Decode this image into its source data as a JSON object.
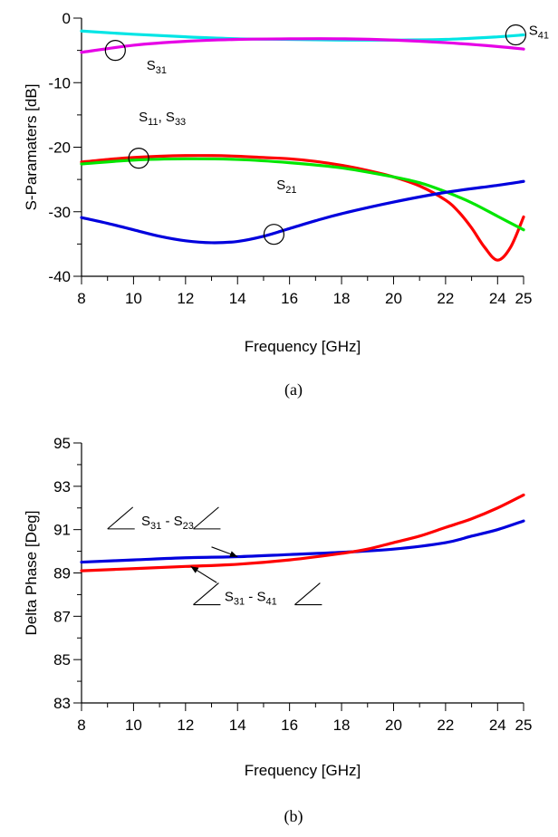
{
  "chart_data": [
    {
      "type": "line",
      "caption": "(a)",
      "xlabel": "Frequency [GHz]",
      "ylabel": "S-Paramaters [dB]",
      "xlim": [
        8,
        25
      ],
      "ylim": [
        -40,
        0
      ],
      "xticks": [
        8,
        10,
        12,
        14,
        16,
        18,
        20,
        22,
        24,
        25
      ],
      "xticks_minor": [
        9,
        11,
        13,
        15,
        17,
        19,
        21,
        23
      ],
      "yticks": [
        0,
        -10,
        -20,
        -30,
        -40
      ],
      "yticks_minor": [
        -5,
        -15,
        -25,
        -35
      ],
      "grid": false,
      "series": [
        {
          "color": "#00e5e5",
          "x": [
            8,
            10,
            12,
            14,
            16,
            18,
            20,
            22,
            24,
            25
          ],
          "y": [
            -2.0,
            -2.5,
            -2.9,
            -3.2,
            -3.3,
            -3.4,
            -3.4,
            -3.3,
            -2.9,
            -2.6
          ]
        },
        {
          "color": "#e600e6",
          "x": [
            8,
            10,
            12,
            14,
            16,
            18,
            20,
            22,
            24,
            25
          ],
          "y": [
            -5.3,
            -4.2,
            -3.6,
            -3.3,
            -3.2,
            -3.2,
            -3.4,
            -3.8,
            -4.4,
            -4.8
          ]
        },
        {
          "color": "#ff0000",
          "x": [
            8,
            9,
            10,
            11,
            12,
            13,
            14,
            15,
            16,
            17,
            18,
            19,
            20,
            21,
            22,
            22.5,
            23,
            23.5,
            24,
            24.5,
            25
          ],
          "y": [
            -22.3,
            -21.9,
            -21.6,
            -21.4,
            -21.3,
            -21.3,
            -21.4,
            -21.6,
            -21.8,
            -22.2,
            -22.8,
            -23.6,
            -24.6,
            -26.0,
            -28.2,
            -30.0,
            -32.5,
            -35.5,
            -37.5,
            -35.5,
            -30.8
          ]
        },
        {
          "color": "#00e600",
          "x": [
            8,
            10,
            12,
            14,
            16,
            18,
            20,
            21,
            22,
            23,
            24,
            25
          ],
          "y": [
            -22.6,
            -22.0,
            -21.8,
            -21.9,
            -22.4,
            -23.2,
            -24.6,
            -25.5,
            -26.9,
            -28.6,
            -30.7,
            -32.8
          ]
        },
        {
          "color": "#0000dd",
          "x": [
            8,
            9,
            10,
            11,
            12,
            13,
            14,
            15,
            16,
            17,
            18,
            20,
            22,
            24,
            25
          ],
          "y": [
            -30.9,
            -31.8,
            -32.8,
            -33.8,
            -34.5,
            -34.8,
            -34.6,
            -33.8,
            -32.6,
            -31.4,
            -30.3,
            -28.5,
            -27.0,
            -25.9,
            -25.3
          ]
        }
      ],
      "markers": [
        {
          "x": 9.3,
          "y": -5.0
        },
        {
          "x": 24.7,
          "y": -2.6
        },
        {
          "x": 10.2,
          "y": -21.7
        },
        {
          "x": 15.4,
          "y": -33.5
        }
      ],
      "annotations": [
        {
          "base": "S",
          "sub": "31",
          "x": 10.5,
          "y": -8.0
        },
        {
          "base": "S",
          "sub": "41",
          "x": 25.2,
          "y": -2.6
        },
        {
          "base": "S",
          "sub": "11",
          "x": 10.2,
          "y": -16.0,
          "suffix": ", ",
          "base2": "S",
          "sub2": "33"
        },
        {
          "base": "S",
          "sub": "21",
          "x": 15.5,
          "y": -26.5
        }
      ]
    },
    {
      "type": "line",
      "caption": "(b)",
      "xlabel": "Frequency [GHz]",
      "ylabel": "Delta Phase [Deg]",
      "xlim": [
        8,
        25
      ],
      "ylim": [
        83,
        95
      ],
      "xticks": [
        8,
        10,
        12,
        14,
        16,
        18,
        20,
        22,
        24,
        25
      ],
      "xticks_minor": [
        9,
        11,
        13,
        15,
        17,
        19,
        21,
        23
      ],
      "yticks": [
        95,
        93,
        91,
        89,
        87,
        85,
        83
      ],
      "yticks_minor": [
        94,
        92,
        90,
        88,
        86,
        84
      ],
      "grid": false,
      "series": [
        {
          "color": "#0000dd",
          "x": [
            8,
            10,
            12,
            14,
            16,
            18,
            20,
            22,
            23,
            24,
            25
          ],
          "y": [
            89.5,
            89.6,
            89.7,
            89.75,
            89.85,
            89.95,
            90.1,
            90.4,
            90.7,
            91.0,
            91.4
          ]
        },
        {
          "color": "#ff0000",
          "x": [
            8,
            10,
            12,
            14,
            16,
            18,
            19,
            20,
            21,
            22,
            23,
            24,
            25
          ],
          "y": [
            89.1,
            89.2,
            89.3,
            89.4,
            89.6,
            89.9,
            90.1,
            90.4,
            90.7,
            91.1,
            91.5,
            92.0,
            92.6
          ]
        }
      ],
      "annotations": [
        {
          "base": "S",
          "sub": "31",
          "suffix": " - ",
          "base2": "S",
          "sub2": "23",
          "x": 10.3,
          "y": 91.2,
          "angle_x": 9.0,
          "angle2_x": 12.3,
          "arrow_from": [
            13.0,
            90.2
          ],
          "arrow_to": [
            14.0,
            89.75
          ]
        },
        {
          "base": "S",
          "sub": "31",
          "suffix": " - ",
          "base2": "S",
          "sub2": "41",
          "x": 13.5,
          "y": 87.7,
          "angle_x": 12.3,
          "angle2_x": 16.2,
          "arrow_from": [
            13.2,
            88.55
          ],
          "arrow_to": [
            12.2,
            89.3
          ]
        }
      ]
    }
  ]
}
